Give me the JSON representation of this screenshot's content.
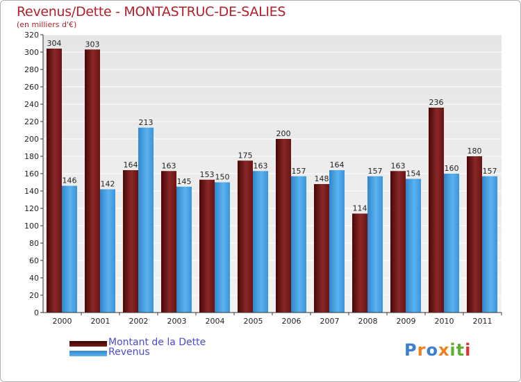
{
  "header": {
    "title": "Revenus/Dette - MONTASTRUC-DE-SALIES",
    "subtitle": "(en milliers d'€)"
  },
  "legend": {
    "items": [
      {
        "label": "Montant de la Dette",
        "color": "#6b1010"
      },
      {
        "label": "Revenus",
        "color": "#3d9be0"
      }
    ]
  },
  "logo": {
    "letters": [
      "P",
      "r",
      "o",
      "x",
      "i",
      "t",
      "i"
    ],
    "colors": [
      "#3a7fd0",
      "#f08020",
      "#3a7fd0",
      "#f08020",
      "#60b030",
      "#60b030",
      "#e03030"
    ]
  },
  "chart_data": {
    "type": "bar",
    "title": "Revenus/Dette - MONTASTRUC-DE-SALIES",
    "ylabel": "(en milliers d'€)",
    "xlabel": "",
    "categories": [
      "2000",
      "2001",
      "2002",
      "2003",
      "2004",
      "2005",
      "2006",
      "2007",
      "2008",
      "2009",
      "2010",
      "2011"
    ],
    "series": [
      {
        "name": "Montant de la Dette",
        "color": "#7a1c1c",
        "values": [
          304,
          303,
          164,
          163,
          153,
          175,
          200,
          148,
          114,
          163,
          236,
          180
        ]
      },
      {
        "name": "Revenus",
        "color": "#3d9be0",
        "values": [
          146,
          142,
          213,
          145,
          150,
          163,
          157,
          164,
          157,
          154,
          160,
          157
        ]
      }
    ],
    "ylim": [
      0,
      320
    ],
    "yticks": [
      0,
      20,
      40,
      60,
      80,
      100,
      120,
      140,
      160,
      180,
      200,
      220,
      240,
      260,
      280,
      300,
      320
    ],
    "grid": true,
    "legend_position": "bottom-left"
  }
}
